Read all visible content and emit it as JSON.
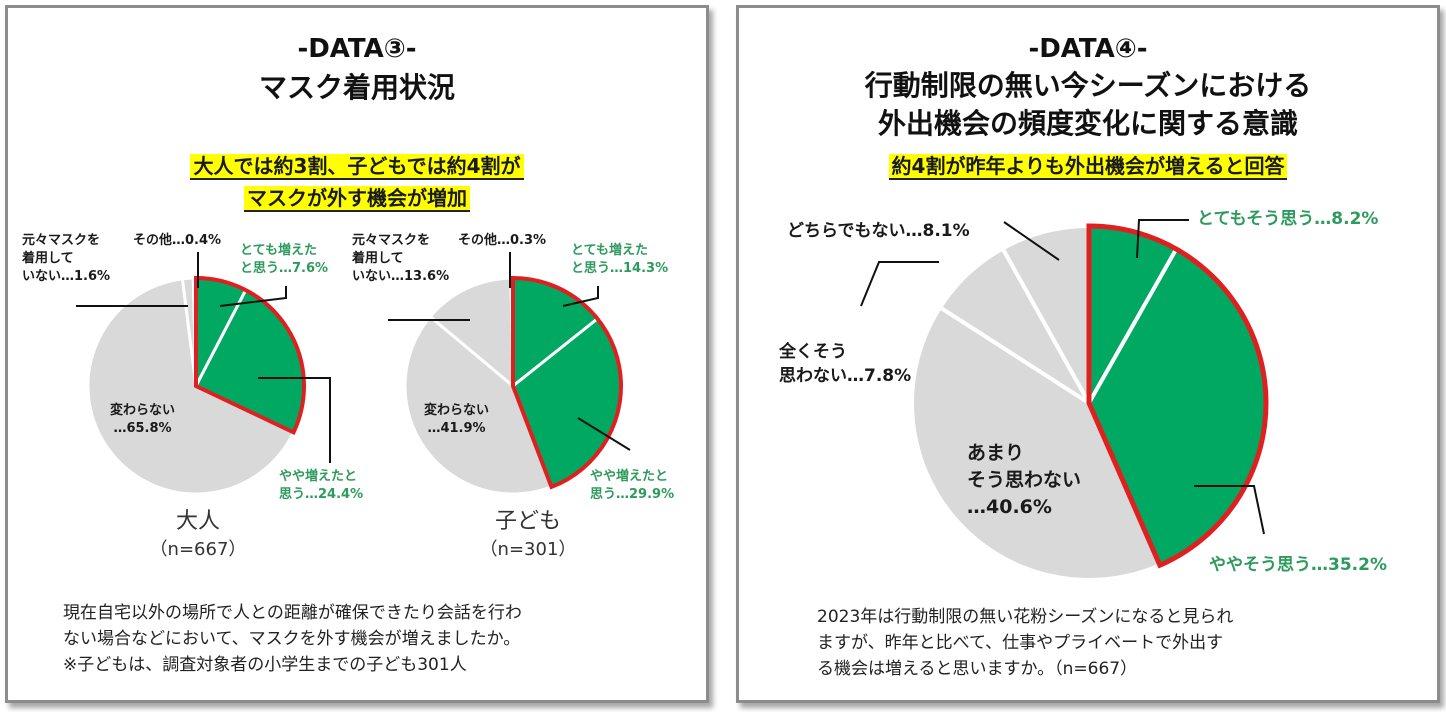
{
  "colors": {
    "green": "#00a862",
    "gray": "#d9d9d9",
    "red": "#e02020",
    "white": "#ffffff",
    "label_green": "#2e9a5e",
    "highlight": "#ffff00"
  },
  "panel3": {
    "data_id": "-DATA③-",
    "title": "マスク着用状況",
    "highlight_line1": "大人では約3割、子どもでは約4割が",
    "highlight_line2": "マスクが外す機会が増加",
    "adult": {
      "group_label": "大人",
      "n_label": "（n=667）",
      "labels": {
        "totemo_1": "とても増えた",
        "totemo_2": "と思う…7.6%",
        "yaya_1": "やや増えたと",
        "yaya_2": "思う…24.4%",
        "kawaranai_1": "変わらない",
        "kawaranai_2": "…65.8%",
        "motomoto_1": "元々マスクを",
        "motomoto_2": "着用して",
        "motomoto_3": "いない…1.6%",
        "other": "その他…0.4%"
      }
    },
    "child": {
      "group_label": "子ども",
      "n_label": "（n=301）",
      "labels": {
        "totemo_1": "とても増えた",
        "totemo_2": "と思う…14.3%",
        "yaya_1": "やや増えたと",
        "yaya_2": "思う…29.9%",
        "kawaranai_1": "変わらない",
        "kawaranai_2": "…41.9%",
        "motomoto_1": "元々マスクを",
        "motomoto_2": "着用して",
        "motomoto_3": "いない…13.6%",
        "other": "その他…0.3%"
      }
    },
    "note_line1": "現在自宅以外の場所で人との距離が確保できたり会話を行わ",
    "note_line2": "ない場合などにおいて、マスクを外す機会が増えましたか。",
    "note_line3": "※子どもは、調査対象者の小学生までの子ども301人"
  },
  "panel4": {
    "data_id": "-DATA④-",
    "title_line1": "行動制限の無い今シーズンにおける",
    "title_line2": "外出機会の頻度変化に関する意識",
    "highlight": "約4割が昨年よりも外出機会が増えると回答",
    "labels": {
      "totemo": "とてもそう思う…8.2%",
      "yaya": "ややそう思う…35.2%",
      "amari_1": "あまり",
      "amari_2": "そう思わない",
      "amari_3": "…40.6%",
      "mattaku_1": "全くそう",
      "mattaku_2": "思わない…7.8%",
      "dochira": "どちらでもない…8.1%"
    },
    "note_line1": "2023年は行動制限の無い花粉シーズンになると見られ",
    "note_line2": "ますが、昨年と比べて、仕事やプライベートで外出す",
    "note_line3": "る機会は増えると思いますか。（n=667）"
  },
  "chart_data": [
    {
      "type": "pie",
      "title": "大人（n=667）",
      "categories": [
        "とても増えたと思う",
        "やや増えたと思う",
        "変わらない",
        "元々マスクを着用していない",
        "その他"
      ],
      "values": [
        7.6,
        24.4,
        65.8,
        1.6,
        0.4
      ],
      "highlighted": [
        0,
        1
      ],
      "unit": "%"
    },
    {
      "type": "pie",
      "title": "子ども（n=301）",
      "categories": [
        "とても増えたと思う",
        "やや増えたと思う",
        "変わらない",
        "元々マスクを着用していない",
        "その他"
      ],
      "values": [
        14.3,
        29.9,
        41.9,
        13.6,
        0.3
      ],
      "highlighted": [
        0,
        1
      ],
      "unit": "%"
    },
    {
      "type": "pie",
      "title": "外出機会の頻度変化（n=667）",
      "categories": [
        "とてもそう思う",
        "ややそう思う",
        "あまりそう思わない",
        "全くそう思わない",
        "どちらでもない"
      ],
      "values": [
        8.2,
        35.2,
        40.6,
        7.8,
        8.1
      ],
      "highlighted": [
        0,
        1
      ],
      "unit": "%"
    }
  ]
}
